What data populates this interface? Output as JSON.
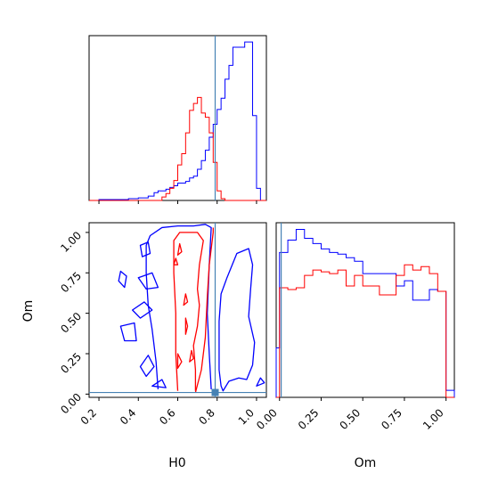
{
  "chart_data": {
    "type": "corner",
    "parameters": [
      "H0",
      "Om"
    ],
    "colors": {
      "series_a": "#0000ff",
      "series_b": "#ff0000",
      "truth": "#4682b4"
    },
    "truth": {
      "H0": 0.79,
      "Om": 0.01
    },
    "panels": [
      {
        "id": "hist-H0",
        "type": "step-histogram",
        "xlim": [
          0.15,
          1.05
        ],
        "xticks": [
          0.2,
          0.4,
          0.6,
          0.8,
          1.0
        ],
        "ytick_labels_shown": false,
        "bin_edges": [
          0.15,
          0.2,
          0.25,
          0.3,
          0.35,
          0.4,
          0.45,
          0.48,
          0.5,
          0.52,
          0.54,
          0.56,
          0.58,
          0.6,
          0.62,
          0.64,
          0.66,
          0.68,
          0.7,
          0.72,
          0.74,
          0.76,
          0.78,
          0.8,
          0.82,
          0.84,
          0.86,
          0.88,
          0.9,
          0.92,
          0.94,
          0.96,
          0.98,
          1.0,
          1.02,
          1.05
        ],
        "series": [
          {
            "color": "blue",
            "counts": [
              0,
              1,
              1,
              1,
              2,
              3,
              5,
              9,
              11,
              11,
              13,
              15,
              17,
              20,
              20,
              22,
              26,
              28,
              36,
              46,
              58,
              73,
              88,
              105,
              118,
              140,
              156,
              177,
              177,
              177,
              183,
              183,
              98,
              14,
              0
            ]
          },
          {
            "color": "red",
            "counts": [
              0,
              0,
              0,
              0,
              0,
              0,
              0,
              0,
              0,
              4,
              8,
              14,
              23,
              41,
              54,
              78,
              104,
              112,
              119,
              101,
              96,
              78,
              44,
              11,
              2,
              0,
              0,
              0,
              0,
              0,
              0,
              0,
              0,
              0,
              0
            ]
          }
        ]
      },
      {
        "id": "contour-H0-Om",
        "type": "2d-contour",
        "xlim": [
          0.15,
          1.05
        ],
        "ylim": [
          -0.02,
          1.06
        ],
        "xticks": [
          0.2,
          0.4,
          0.6,
          0.8,
          1.0
        ],
        "yticks": [
          0.0,
          0.25,
          0.5,
          0.75,
          1.0
        ],
        "xtick_labels": [
          "0.2",
          "0.4",
          "0.6",
          "0.8",
          "1.0"
        ],
        "ytick_labels": [
          "0.00",
          "0.25",
          "0.50",
          "0.75",
          "1.00"
        ],
        "xlabel": "H0",
        "ylabel": "Om",
        "contours": [
          {
            "color": "blue",
            "points": [
              [
                0.5,
                0.03
              ],
              [
                0.49,
                0.2
              ],
              [
                0.47,
                0.4
              ],
              [
                0.45,
                0.55
              ],
              [
                0.44,
                0.75
              ],
              [
                0.44,
                0.92
              ],
              [
                0.46,
                0.98
              ],
              [
                0.52,
                1.03
              ],
              [
                0.6,
                1.04
              ],
              [
                0.68,
                1.04
              ],
              [
                0.74,
                1.05
              ],
              [
                0.77,
                1.03
              ],
              [
                0.76,
                0.8
              ],
              [
                0.75,
                0.5
              ],
              [
                0.76,
                0.25
              ],
              [
                0.77,
                0.03
              ]
            ],
            "closed": false
          },
          {
            "color": "blue",
            "points": [
              [
                0.83,
                0.02
              ],
              [
                0.86,
                0.08
              ],
              [
                0.91,
                0.1
              ],
              [
                0.95,
                0.09
              ],
              [
                0.98,
                0.18
              ],
              [
                0.99,
                0.32
              ],
              [
                0.96,
                0.48
              ],
              [
                0.97,
                0.65
              ],
              [
                0.98,
                0.8
              ],
              [
                0.96,
                0.9
              ],
              [
                0.9,
                0.87
              ],
              [
                0.85,
                0.72
              ],
              [
                0.82,
                0.62
              ],
              [
                0.81,
                0.45
              ],
              [
                0.81,
                0.3
              ],
              [
                0.81,
                0.15
              ],
              [
                0.82,
                0.05
              ]
            ],
            "closed": true
          },
          {
            "color": "blue",
            "points": [
              [
                0.41,
                0.92
              ],
              [
                0.45,
                0.94
              ],
              [
                0.46,
                0.87
              ],
              [
                0.42,
                0.85
              ]
            ],
            "closed": true
          },
          {
            "color": "blue",
            "points": [
              [
                0.31,
                0.76
              ],
              [
                0.34,
                0.73
              ],
              [
                0.33,
                0.66
              ],
              [
                0.3,
                0.7
              ]
            ],
            "closed": true
          },
          {
            "color": "blue",
            "points": [
              [
                0.4,
                0.72
              ],
              [
                0.47,
                0.75
              ],
              [
                0.5,
                0.66
              ],
              [
                0.44,
                0.65
              ]
            ],
            "closed": true
          },
          {
            "color": "blue",
            "points": [
              [
                0.37,
                0.52
              ],
              [
                0.43,
                0.57
              ],
              [
                0.47,
                0.52
              ],
              [
                0.41,
                0.47
              ]
            ],
            "closed": true
          },
          {
            "color": "blue",
            "points": [
              [
                0.31,
                0.42
              ],
              [
                0.38,
                0.44
              ],
              [
                0.39,
                0.33
              ],
              [
                0.33,
                0.33
              ]
            ],
            "closed": true
          },
          {
            "color": "blue",
            "points": [
              [
                0.41,
                0.17
              ],
              [
                0.45,
                0.24
              ],
              [
                0.48,
                0.17
              ],
              [
                0.44,
                0.11
              ]
            ],
            "closed": true
          },
          {
            "color": "blue",
            "points": [
              [
                0.47,
                0.05
              ],
              [
                0.52,
                0.09
              ],
              [
                0.54,
                0.04
              ]
            ],
            "closed": true
          },
          {
            "color": "blue",
            "points": [
              [
                1.0,
                0.05
              ],
              [
                1.02,
                0.1
              ],
              [
                1.04,
                0.07
              ]
            ],
            "closed": true
          },
          {
            "color": "red",
            "points": [
              [
                0.6,
                0.02
              ],
              [
                0.59,
                0.25
              ],
              [
                0.59,
                0.5
              ],
              [
                0.58,
                0.75
              ],
              [
                0.58,
                0.95
              ],
              [
                0.61,
                1.0
              ],
              [
                0.7,
                1.0
              ],
              [
                0.73,
                0.95
              ],
              [
                0.71,
                0.8
              ],
              [
                0.7,
                0.65
              ],
              [
                0.71,
                0.55
              ],
              [
                0.7,
                0.42
              ],
              [
                0.68,
                0.3
              ],
              [
                0.69,
                0.15
              ],
              [
                0.69,
                0.02
              ]
            ],
            "closed": false
          },
          {
            "color": "red",
            "points": [
              [
                0.69,
                0.01
              ],
              [
                0.72,
                0.15
              ],
              [
                0.74,
                0.35
              ],
              [
                0.75,
                0.6
              ],
              [
                0.76,
                0.8
              ],
              [
                0.78,
                1.0
              ],
              [
                0.78,
                1.03
              ]
            ],
            "closed": false
          },
          {
            "color": "red",
            "points": [
              [
                0.64,
                0.37
              ],
              [
                0.64,
                0.47
              ],
              [
                0.65,
                0.42
              ]
            ],
            "closed": true
          },
          {
            "color": "red",
            "points": [
              [
                0.6,
                0.86
              ],
              [
                0.61,
                0.93
              ],
              [
                0.62,
                0.88
              ]
            ],
            "closed": true
          },
          {
            "color": "red",
            "points": [
              [
                0.63,
                0.55
              ],
              [
                0.64,
                0.62
              ],
              [
                0.65,
                0.57
              ]
            ],
            "closed": true
          },
          {
            "color": "red",
            "points": [
              [
                0.6,
                0.16
              ],
              [
                0.6,
                0.25
              ],
              [
                0.62,
                0.2
              ]
            ],
            "closed": true
          },
          {
            "color": "red",
            "points": [
              [
                0.66,
                0.2
              ],
              [
                0.67,
                0.27
              ],
              [
                0.68,
                0.22
              ]
            ],
            "closed": true
          },
          {
            "color": "red",
            "points": [
              [
                0.58,
                0.8
              ],
              [
                0.59,
                0.84
              ],
              [
                0.6,
                0.8
              ]
            ],
            "closed": true
          }
        ]
      },
      {
        "id": "hist-Om",
        "type": "step-histogram",
        "xlim": [
          -0.02,
          1.05
        ],
        "xticks": [
          0.0,
          0.25,
          0.5,
          0.75,
          1.0
        ],
        "xtick_labels": [
          "0.00",
          "0.25",
          "0.50",
          "0.75",
          "1.00"
        ],
        "xlabel": "Om",
        "ytick_labels_shown": false,
        "bin_edges": [
          -0.02,
          0.0,
          0.05,
          0.1,
          0.15,
          0.2,
          0.25,
          0.3,
          0.35,
          0.4,
          0.45,
          0.5,
          0.55,
          0.6,
          0.65,
          0.7,
          0.75,
          0.8,
          0.85,
          0.9,
          0.95,
          1.0,
          1.05
        ],
        "series": [
          {
            "color": "blue",
            "counts": [
              28,
              82,
              89,
              95,
              90,
              87,
              84,
              82,
              81,
              79,
              77,
              70,
              70,
              70,
              70,
              63,
              66,
              55,
              55,
              61,
              60,
              4
            ]
          },
          {
            "color": "red",
            "counts": [
              0,
              62,
              61,
              62,
              69,
              72,
              71,
              70,
              72,
              63,
              69,
              63,
              63,
              58,
              58,
              69,
              75,
              72,
              74,
              70,
              60,
              0
            ]
          }
        ]
      }
    ]
  }
}
